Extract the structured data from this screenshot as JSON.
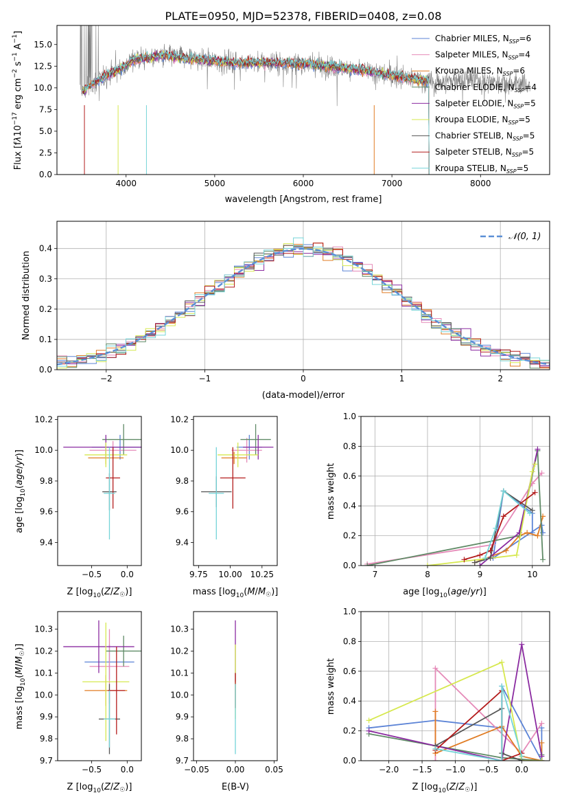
{
  "figure_title": "PLATE=0950, MJD=52378, FIBERID=0408, z=0.08",
  "colors": {
    "Chabrier MILES": "#5b83d6",
    "Salpeter MILES": "#e58ab8",
    "Kroupa MILES": "#e07b22",
    "Chabrier ELODIE": "#5f8a66",
    "Salpeter ELODIE": "#8a2aa0",
    "Kroupa ELODIE": "#d6e84e",
    "Chabrier STELIB": "#555555",
    "Salpeter STELIB": "#b31b1b",
    "Kroupa STELIB": "#74d4d8",
    "data": "#808080",
    "normal": "#5b8fd6",
    "grid": "#b0b0b0"
  },
  "chart_data": [
    {
      "id": "spectrum",
      "type": "line",
      "title": "PLATE=0950, MJD=52378, FIBERID=0408, z=0.08",
      "xlabel": "wavelength [Angstrom, rest frame]",
      "ylabel": "Flux [f_λ 10^-17 erg cm^-2 s^-1 A^-1]",
      "xlim": [
        3220,
        8780
      ],
      "ylim": [
        0,
        17.2
      ],
      "xticks": [
        4000,
        5000,
        6000,
        7000,
        8000
      ],
      "yticks": [
        "0.0",
        "2.5",
        "5.0",
        "7.5",
        "10.0",
        "12.5",
        "15.0"
      ],
      "grid": false,
      "legend_position": "top-right",
      "continuum": [
        [
          3500,
          9.5
        ],
        [
          3700,
          11.0
        ],
        [
          3900,
          12.0
        ],
        [
          4100,
          13.3
        ],
        [
          4400,
          13.7
        ],
        [
          4800,
          13.3
        ],
        [
          5200,
          12.9
        ],
        [
          5600,
          12.9
        ],
        [
          6000,
          12.8
        ],
        [
          6400,
          12.4
        ],
        [
          6800,
          11.8
        ],
        [
          7200,
          11.1
        ],
        [
          7500,
          10.6
        ],
        [
          7800,
          11.0
        ],
        [
          8300,
          10.6
        ],
        [
          8550,
          10.3
        ]
      ],
      "model_end": 7420,
      "series": [
        {
          "name": "Chabrier MILES, N_SSP=6",
          "color": "Chabrier MILES"
        },
        {
          "name": "Salpeter MILES, N_SSP=4",
          "color": "Salpeter MILES"
        },
        {
          "name": "Kroupa MILES, N_SSP=6",
          "color": "Kroupa MILES"
        },
        {
          "name": "Chabrier ELODIE, N_SSP=4",
          "color": "Chabrier ELODIE"
        },
        {
          "name": "Salpeter ELODIE, N_SSP=5",
          "color": "Salpeter ELODIE"
        },
        {
          "name": "Kroupa ELODIE, N_SSP=5",
          "color": "Kroupa ELODIE"
        },
        {
          "name": "Chabrier STELIB, N_SSP=5",
          "color": "Chabrier STELIB"
        },
        {
          "name": "Salpeter STELIB, N_SSP=5",
          "color": "Salpeter STELIB"
        },
        {
          "name": "Kroupa STELIB, N_SSP=5",
          "color": "Kroupa STELIB"
        }
      ]
    },
    {
      "id": "residuals",
      "type": "line",
      "xlabel": "(data-model)/error",
      "ylabel": "Normed distribution",
      "xlim": [
        -2.5,
        2.5
      ],
      "ylim": [
        0,
        0.49
      ],
      "xticks": [
        "−2",
        "−1",
        "0",
        "1",
        "2"
      ],
      "yticks": [
        "0.0",
        "0.1",
        "0.2",
        "0.3",
        "0.4"
      ],
      "grid": true,
      "legend": "𝒩(0, 1)",
      "legend_position": "top-right",
      "bin_width": 0.1
    },
    {
      "id": "age_vs_Z",
      "type": "scatter",
      "xlabel": "Z [log10(Z/Z☉)]",
      "ylabel": "age  [log10(age/yr)]",
      "xlim": [
        -0.98,
        0.2
      ],
      "ylim": [
        9.25,
        10.22
      ],
      "xticks": [
        "−0.5",
        "0.0"
      ],
      "yticks": [
        "9.4",
        "9.6",
        "9.8",
        "10.0",
        "10.2"
      ],
      "grid": false,
      "points": [
        {
          "c": "Chabrier MILES",
          "x": -0.1,
          "xerr": 0.4,
          "y": 10.02,
          "yerr": 0.08
        },
        {
          "c": "Salpeter MILES",
          "x": -0.2,
          "xerr": 0.33,
          "y": 10.0,
          "yerr": 0.06
        },
        {
          "c": "Kroupa MILES",
          "x": -0.3,
          "xerr": 0.25,
          "y": 9.95,
          "yerr": 0.04
        },
        {
          "c": "Chabrier ELODIE",
          "x": -0.05,
          "xerr": 0.3,
          "y": 10.07,
          "yerr": 0.1
        },
        {
          "c": "Salpeter ELODIE",
          "x": -0.3,
          "xerr": 0.6,
          "y": 10.02,
          "yerr": 0.08
        },
        {
          "c": "Kroupa ELODIE",
          "x": -0.3,
          "xerr": 0.3,
          "y": 9.97,
          "yerr": 0.08
        },
        {
          "c": "Chabrier STELIB",
          "x": -0.25,
          "xerr": 0.1,
          "y": 9.73,
          "yerr": 0.12
        },
        {
          "c": "Salpeter STELIB",
          "x": -0.2,
          "xerr": 0.1,
          "y": 9.82,
          "yerr": 0.2
        },
        {
          "c": "Kroupa STELIB",
          "x": -0.25,
          "xerr": 0.08,
          "y": 9.72,
          "yerr": 0.3
        }
      ]
    },
    {
      "id": "age_vs_mass",
      "type": "scatter",
      "xlabel": "mass [log10(M/M☉)]",
      "ylabel": "",
      "xlim": [
        9.71,
        10.37
      ],
      "ylim": [
        9.25,
        10.22
      ],
      "xticks": [
        "9.75",
        "10.00",
        "10.25"
      ],
      "yticks": [
        "9.4",
        "9.6",
        "9.8",
        "10.0",
        "10.2"
      ],
      "grid": false,
      "points": [
        {
          "c": "Chabrier MILES",
          "x": 10.15,
          "xerr": 0.1,
          "y": 10.02,
          "yerr": 0.08
        },
        {
          "c": "Salpeter MILES",
          "x": 10.13,
          "xerr": 0.12,
          "y": 10.0,
          "yerr": 0.08
        },
        {
          "c": "Kroupa MILES",
          "x": 10.03,
          "xerr": 0.1,
          "y": 9.95,
          "yerr": 0.04
        },
        {
          "c": "Chabrier ELODIE",
          "x": 10.2,
          "xerr": 0.12,
          "y": 10.07,
          "yerr": 0.1
        },
        {
          "c": "Salpeter ELODIE",
          "x": 10.22,
          "xerr": 0.12,
          "y": 10.02,
          "yerr": 0.08
        },
        {
          "c": "Kroupa ELODIE",
          "x": 10.06,
          "xerr": 0.16,
          "y": 9.97,
          "yerr": 0.08
        },
        {
          "c": "Chabrier STELIB",
          "x": 9.89,
          "xerr": 0.12,
          "y": 9.73,
          "yerr": 0.1
        },
        {
          "c": "Salpeter STELIB",
          "x": 10.02,
          "xerr": 0.1,
          "y": 9.82,
          "yerr": 0.2
        },
        {
          "c": "Kroupa STELIB",
          "x": 9.89,
          "xerr": 0.06,
          "y": 9.72,
          "yerr": 0.3
        }
      ]
    },
    {
      "id": "weight_vs_age",
      "type": "line",
      "xlabel": "age  [log10(age/yr)]",
      "ylabel": "mass weight",
      "xlim": [
        6.73,
        10.33
      ],
      "ylim": [
        0,
        1.0
      ],
      "xticks": [
        "7",
        "8",
        "9",
        "10"
      ],
      "yticks": [
        "0.0",
        "0.2",
        "0.4",
        "0.6",
        "0.8",
        "1.0"
      ],
      "grid": true,
      "series": [
        {
          "c": "Chabrier MILES",
          "x": [
            10.2,
            10.18,
            9.25,
            9.45,
            10.0,
            10.0
          ],
          "y": [
            0.22,
            0.27,
            0.05,
            0.5,
            0.35,
            0.22
          ]
        },
        {
          "c": "Salpeter MILES",
          "x": [
            6.85,
            9.25,
            10.0,
            10.18
          ],
          "y": [
            0.01,
            0.14,
            0.55,
            0.62
          ]
        },
        {
          "c": "Kroupa MILES",
          "x": [
            8.9,
            9.5,
            9.75,
            9.9,
            10.1,
            10.2
          ],
          "y": [
            0.02,
            0.1,
            0.2,
            0.22,
            0.2,
            0.33
          ]
        },
        {
          "c": "Chabrier ELODIE",
          "x": [
            6.85,
            9.75,
            10.1,
            10.2
          ],
          "y": [
            0.0,
            0.2,
            0.77,
            0.04
          ]
        },
        {
          "c": "Salpeter ELODIE",
          "x": [
            9.0,
            9.75,
            10.1
          ],
          "y": [
            0.0,
            0.22,
            0.78
          ]
        },
        {
          "c": "Kroupa ELODIE",
          "x": [
            8.0,
            9.7,
            10.0,
            10.05
          ],
          "y": [
            0.0,
            0.07,
            0.63,
            0.68
          ]
        },
        {
          "c": "Chabrier STELIB",
          "x": [
            8.9,
            9.2,
            9.45,
            10.0
          ],
          "y": [
            0.02,
            0.05,
            0.5,
            0.37
          ]
        },
        {
          "c": "Salpeter STELIB",
          "x": [
            8.7,
            9.0,
            9.2,
            9.45,
            10.05
          ],
          "y": [
            0.04,
            0.07,
            0.1,
            0.33,
            0.49
          ]
        },
        {
          "c": "Kroupa STELIB",
          "x": [
            9.1,
            9.3,
            9.45,
            9.95
          ],
          "y": [
            0.05,
            0.25,
            0.5,
            0.35
          ]
        }
      ]
    },
    {
      "id": "mass_vs_Z",
      "type": "scatter",
      "xlabel": "Z [log10(Z/Z☉)]",
      "ylabel": "mass [log10(M/M☉)]",
      "xlim": [
        -0.98,
        0.2
      ],
      "ylim": [
        9.7,
        10.38
      ],
      "xticks": [
        "−0.5",
        "0.0"
      ],
      "yticks": [
        "9.7",
        "9.8",
        "9.9",
        "10.0",
        "10.1",
        "10.2",
        "10.3"
      ],
      "grid": false,
      "points": [
        {
          "c": "Chabrier MILES",
          "x": -0.25,
          "xerr": 0.35,
          "y": 10.15,
          "yerr": 0.08
        },
        {
          "c": "Salpeter MILES",
          "x": -0.25,
          "xerr": 0.28,
          "y": 10.13,
          "yerr": 0.17
        },
        {
          "c": "Kroupa MILES",
          "x": -0.3,
          "xerr": 0.3,
          "y": 10.02,
          "yerr": 0.07
        },
        {
          "c": "Chabrier ELODIE",
          "x": -0.05,
          "xerr": 0.25,
          "y": 10.2,
          "yerr": 0.07
        },
        {
          "c": "Salpeter ELODIE",
          "x": -0.4,
          "xerr": 0.5,
          "y": 10.22,
          "yerr": 0.12
        },
        {
          "c": "Kroupa ELODIE",
          "x": -0.3,
          "xerr": 0.33,
          "y": 10.06,
          "yerr": 0.27
        },
        {
          "c": "Chabrier STELIB",
          "x": -0.25,
          "xerr": 0.15,
          "y": 9.89,
          "yerr": 0.16
        },
        {
          "c": "Salpeter STELIB",
          "x": -0.15,
          "xerr": 0.12,
          "y": 10.02,
          "yerr": 0.2
        },
        {
          "c": "Kroupa STELIB",
          "x": -0.25,
          "xerr": 0.08,
          "y": 9.89,
          "yerr": 0.13
        }
      ]
    },
    {
      "id": "mass_vs_ebv",
      "type": "scatter",
      "xlabel": "E(B-V)",
      "ylabel": "",
      "xlim": [
        -0.054,
        0.054
      ],
      "ylim": [
        9.7,
        10.38
      ],
      "xticks": [
        "−0.05",
        "0.00",
        "0.05"
      ],
      "yticks": [
        "9.7",
        "9.8",
        "9.9",
        "10.0",
        "10.1",
        "10.2",
        "10.3"
      ],
      "grid": false,
      "points": [
        {
          "c": "Salpeter ELODIE",
          "x": 0.0,
          "y": 10.2,
          "yerr": 0.14
        },
        {
          "c": "Kroupa ELODIE",
          "x": 0.0,
          "y": 10.06,
          "yerr": 0.17
        },
        {
          "c": "Salpeter STELIB",
          "x": 0.0,
          "y": 10.02,
          "yerr": 0.08
        },
        {
          "c": "Kroupa STELIB",
          "x": 0.0,
          "y": 9.89,
          "yerr": 0.16
        }
      ]
    },
    {
      "id": "weight_vs_Z",
      "type": "line",
      "xlabel": "Z [log10(Z/Z☉)]",
      "ylabel": "mass weight",
      "xlim": [
        -2.42,
        0.42
      ],
      "ylim": [
        0,
        1.0
      ],
      "xticks": [
        "−2.0",
        "−1.5",
        "−1.0",
        "−0.5",
        "0.0"
      ],
      "yticks": [
        "0.0",
        "0.2",
        "0.4",
        "0.6",
        "0.8",
        "1.0"
      ],
      "grid": true,
      "series": [
        {
          "c": "Chabrier MILES",
          "x": [
            -2.3,
            -1.3,
            -0.3,
            -0.3,
            0.3,
            0.3
          ],
          "y": [
            0.22,
            0.27,
            0.22,
            0.5,
            0.0,
            0.22
          ]
        },
        {
          "c": "Salpeter MILES",
          "x": [
            -1.3,
            -1.3,
            0.0,
            0.3
          ],
          "y": [
            0.0,
            0.62,
            0.05,
            0.25
          ]
        },
        {
          "c": "Kroupa MILES",
          "x": [
            -1.3,
            -1.3,
            -0.3,
            0.0,
            0.3,
            0.3
          ],
          "y": [
            0.33,
            0.05,
            0.23,
            0.03,
            0.0,
            0.12
          ]
        },
        {
          "c": "Chabrier ELODIE",
          "x": [
            -2.3,
            -0.3,
            0.3,
            0.3
          ],
          "y": [
            0.18,
            0.02,
            0.0,
            0.04
          ]
        },
        {
          "c": "Salpeter ELODIE",
          "x": [
            -2.3,
            -0.3,
            0.0,
            0.3
          ],
          "y": [
            0.2,
            0.0,
            0.78,
            0.03
          ]
        },
        {
          "c": "Kroupa ELODIE",
          "x": [
            -2.3,
            -0.3,
            0.0,
            0.3
          ],
          "y": [
            0.27,
            0.66,
            0.0,
            0.0
          ]
        },
        {
          "c": "Chabrier STELIB",
          "x": [
            -1.3,
            -0.3,
            -0.3,
            0.0
          ],
          "y": [
            0.1,
            0.35,
            0.05,
            0.0
          ]
        },
        {
          "c": "Salpeter STELIB",
          "x": [
            -1.3,
            -0.3,
            -0.3,
            0.0
          ],
          "y": [
            0.07,
            0.47,
            0.0,
            0.05
          ]
        },
        {
          "c": "Kroupa STELIB",
          "x": [
            -1.3,
            -0.3,
            -0.3,
            0.0
          ],
          "y": [
            0.08,
            0.0,
            0.5,
            0.03
          ]
        }
      ]
    }
  ]
}
